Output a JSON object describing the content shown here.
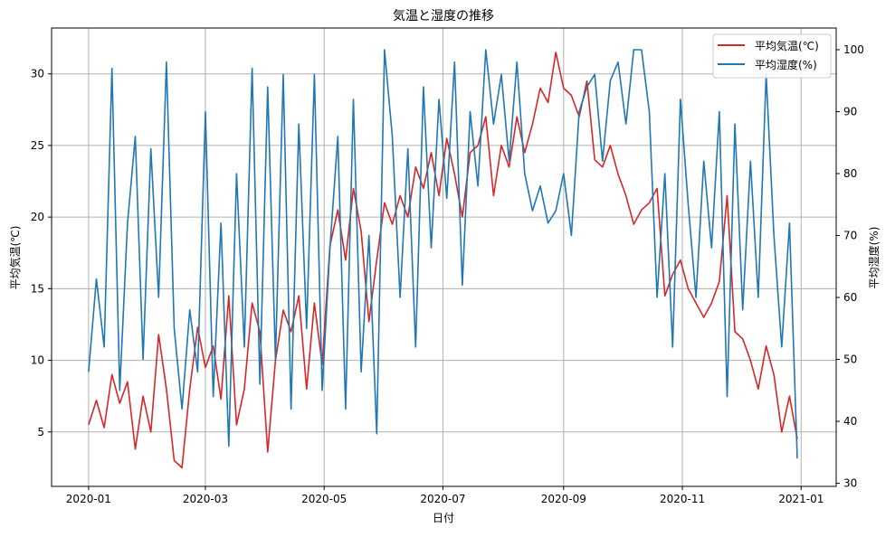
{
  "chart_data": {
    "type": "line",
    "title": "気温と湿度の推移",
    "xlabel": "日付",
    "ylabel_left": "平均気温(℃)",
    "ylabel_right": "平均湿度(%)",
    "start_date": "2020-01-01",
    "interval_days": 4,
    "x_ticks": [
      {
        "label": "2020-01",
        "day": 0
      },
      {
        "label": "2020-03",
        "day": 60
      },
      {
        "label": "2020-05",
        "day": 121
      },
      {
        "label": "2020-07",
        "day": 182
      },
      {
        "label": "2020-09",
        "day": 244
      },
      {
        "label": "2020-11",
        "day": 305
      },
      {
        "label": "2021-01",
        "day": 366
      }
    ],
    "xlim_days": [
      -19,
      384
    ],
    "ylim_left": [
      1.2,
      33.2
    ],
    "ylim_right": [
      29.5,
      103.5
    ],
    "yticks_left": [
      5,
      10,
      15,
      20,
      25,
      30
    ],
    "yticks_right": [
      30,
      40,
      50,
      60,
      70,
      80,
      90,
      100
    ],
    "grid": true,
    "legend_position": "top-right",
    "series": [
      {
        "name": "平均気温(℃)",
        "axis": "left",
        "color": "#d62728",
        "values": [
          5.5,
          7.2,
          5.3,
          9.0,
          7.0,
          8.5,
          3.8,
          7.5,
          5.0,
          11.8,
          8.0,
          3.0,
          2.5,
          8.0,
          12.3,
          9.5,
          11.0,
          7.3,
          14.5,
          5.5,
          8.0,
          14.0,
          12.0,
          3.6,
          10.0,
          13.5,
          12.0,
          14.5,
          8.0,
          14.0,
          9.7,
          18.0,
          20.5,
          17.0,
          22.0,
          19.0,
          12.7,
          17.0,
          21.0,
          19.5,
          21.5,
          20.0,
          23.5,
          22.0,
          24.5,
          21.5,
          25.5,
          23.0,
          20.0,
          24.5,
          25.0,
          27.0,
          21.5,
          25.0,
          23.5,
          27.0,
          24.5,
          26.5,
          29.0,
          28.0,
          31.5,
          29.0,
          28.5,
          27.0,
          29.5,
          24.0,
          23.5,
          25.0,
          23.0,
          21.5,
          19.5,
          20.5,
          21.0,
          22.0,
          14.5,
          16.0,
          17.0,
          15.0,
          14.0,
          13.0,
          14.0,
          15.5,
          21.5,
          12.0,
          11.5,
          10.0,
          8.0,
          11.0,
          9.0,
          5.0,
          7.5,
          4.5
        ]
      },
      {
        "name": "平均湿度(%)",
        "axis": "right",
        "color": "#1f77b4",
        "values": [
          48,
          63,
          52,
          97,
          45,
          72,
          86,
          50,
          84,
          60,
          98,
          55,
          42,
          58,
          48,
          90,
          44,
          72,
          36,
          80,
          52,
          97,
          46,
          94,
          50,
          96,
          42,
          88,
          55,
          96,
          45,
          68,
          86,
          42,
          92,
          48,
          70,
          38,
          100,
          86,
          60,
          84,
          52,
          94,
          68,
          92,
          76,
          98,
          62,
          90,
          78,
          100,
          88,
          96,
          82,
          98,
          80,
          74,
          78,
          72,
          74,
          80,
          70,
          90,
          94,
          96,
          82,
          95,
          98,
          88,
          100,
          100,
          90,
          60,
          80,
          52,
          92,
          75,
          60,
          82,
          68,
          90,
          44,
          88,
          58,
          82,
          60,
          96,
          70,
          52,
          72,
          34
        ]
      }
    ]
  }
}
